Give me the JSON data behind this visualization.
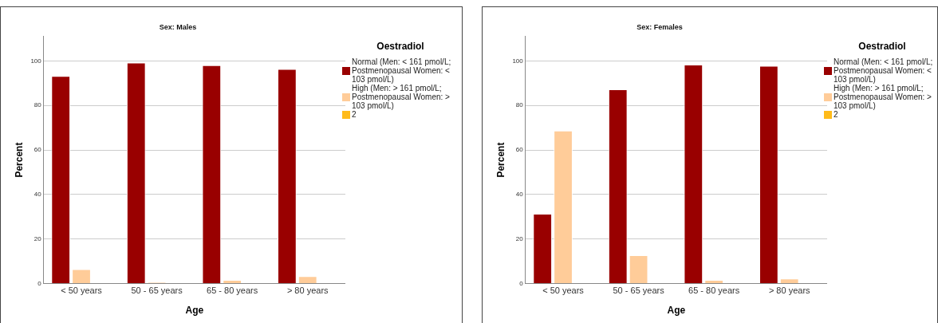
{
  "chart_data": [
    {
      "type": "bar",
      "title": "Sex: Males",
      "xlabel": "Age",
      "ylabel": "Percent",
      "legend_title": "Oestradiol",
      "categories": [
        "< 50 years",
        "50 - 65 years",
        "65 - 80 years",
        "> 80 years"
      ],
      "series": [
        {
          "name": "Normal (Men: < 161 pmol/L; Postmenopausal Women: < 103 pmol/L)",
          "color": "#990000",
          "values": [
            93.3,
            99.3,
            98.1,
            96.4
          ]
        },
        {
          "name": "High (Men: > 161 pmol/L; Postmenopausal Women: > 103 pmol/L)",
          "color": "#ffcc99",
          "values": [
            6.4,
            0.5,
            1.6,
            3.3
          ]
        },
        {
          "name": "2",
          "color": "#ffbb1a",
          "values": [
            null,
            null,
            null,
            null
          ]
        }
      ],
      "ylim": [
        0,
        111
      ],
      "yticks": [
        0,
        20,
        40,
        60,
        80,
        100
      ],
      "grid": "y",
      "legend": "right"
    },
    {
      "type": "bar",
      "title": "Sex: Females",
      "xlabel": "Age",
      "ylabel": "Percent",
      "legend_title": "Oestradiol",
      "categories": [
        "< 50 years",
        "50 - 65 years",
        "65 - 80 years",
        "> 80 years"
      ],
      "series": [
        {
          "name": "Normal (Men: < 161 pmol/L; Postmenopausal Women: < 103 pmol/L)",
          "color": "#990000",
          "values": [
            31.3,
            87.3,
            98.4,
            97.8
          ]
        },
        {
          "name": "High (Men: > 161 pmol/L; Postmenopausal Women: > 103 pmol/L)",
          "color": "#ffcc99",
          "values": [
            68.7,
            12.7,
            1.6,
            2.2
          ]
        },
        {
          "name": "2",
          "color": "#ffbb1a",
          "values": [
            null,
            null,
            null,
            null
          ]
        }
      ],
      "ylim": [
        0,
        111
      ],
      "yticks": [
        0,
        20,
        40,
        60,
        80,
        100
      ],
      "grid": "y",
      "legend": "right"
    }
  ]
}
